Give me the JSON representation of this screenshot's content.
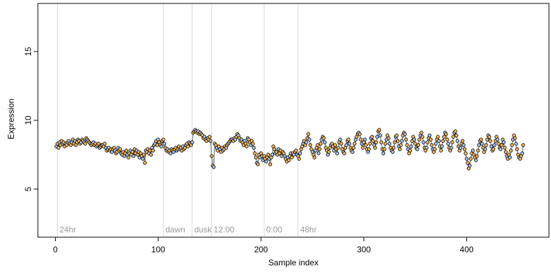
{
  "chart_data": {
    "type": "scatter",
    "title": "",
    "xlabel": "Sample index",
    "ylabel": "Expression",
    "xlim": [
      -17,
      480
    ],
    "ylim": [
      1.5,
      18.5
    ],
    "x_ticks": [
      0,
      100,
      200,
      300,
      400
    ],
    "y_ticks": [
      5,
      10,
      15
    ],
    "grid": false,
    "colors": {
      "point_fill_a": "#f4b860",
      "point_fill_b": "#a8c4ec",
      "segment_a": "#f0a830",
      "segment_b": "#7aa0e0",
      "trend_line": "#999999",
      "marker_line": "#d9d9d9",
      "marker_text": "#999999",
      "point_stroke": "#000000"
    },
    "markers": [
      {
        "x": 2,
        "label": "24hr"
      },
      {
        "x": 105,
        "label": "dawn"
      },
      {
        "x": 133,
        "label": "dusk"
      },
      {
        "x": 152,
        "label": "12:00"
      },
      {
        "x": 203,
        "label": "0:00"
      },
      {
        "x": 236,
        "label": "48hr"
      }
    ],
    "series": [
      {
        "start_x": 1,
        "values": [
          8.1,
          8.3,
          8.0,
          8.4,
          8.2,
          8.5,
          8.3,
          8.4,
          8.1,
          8.3,
          8.2,
          8.4,
          8.5,
          8.3,
          8.2,
          8.4,
          8.6,
          8.3,
          8.5,
          8.2,
          8.4,
          8.6,
          8.5,
          8.3,
          8.4,
          8.6,
          8.5,
          8.4,
          8.3,
          8.7,
          8.6,
          8.5,
          8.4,
          8.3,
          8.2,
          8.3,
          8.4,
          8.2,
          8.3,
          8.1,
          8.2,
          8.3,
          8.0,
          8.1,
          8.2,
          8.2,
          8.1,
          8.3,
          8.0,
          7.8,
          7.9,
          8.0,
          7.8,
          7.9,
          7.7,
          7.9,
          8.0,
          7.8,
          7.6,
          7.7,
          8.0,
          7.8,
          7.9,
          7.6,
          7.5,
          7.7,
          7.4,
          7.6,
          7.8,
          7.5,
          7.3,
          7.6,
          7.8,
          7.5,
          7.7,
          7.4,
          7.9,
          7.6,
          7.8,
          7.5,
          7.7,
          7.3,
          7.6,
          7.4,
          7.2,
          7.5,
          6.9,
          7.8,
          7.7,
          7.9,
          7.6,
          7.8,
          7.5,
          8.0,
          7.8,
          8.2,
          8.3,
          8.5,
          8.2,
          8.6,
          8.4,
          8.2,
          8.1,
          8.5,
          8.6,
          8.3,
          8.0,
          7.8,
          7.9,
          7.7,
          7.8,
          7.6,
          7.9,
          7.8,
          7.7,
          7.9,
          8.0,
          7.8,
          7.9,
          8.1,
          7.9,
          8.0,
          7.8,
          8.1,
          7.9,
          8.0,
          8.2,
          8.3,
          8.1,
          8.4,
          8.3,
          8.2,
          8.4,
          9.1,
          9.2,
          9.3,
          9.2,
          9.1,
          9.2,
          9.0,
          9.1,
          9.0,
          8.9,
          8.7,
          8.8,
          8.6,
          8.5,
          8.7,
          8.6,
          8.8,
          8.5,
          7.4,
          6.7,
          6.6,
          8.3,
          8.2,
          8.0,
          7.8,
          8.1,
          7.9,
          7.7,
          8.0,
          7.8,
          7.9,
          8.1,
          8.0,
          8.2,
          8.3,
          8.4,
          8.5,
          8.6,
          8.6,
          8.5,
          8.7,
          8.6,
          8.8,
          9.0,
          8.9,
          8.7,
          8.5,
          8.6,
          8.4,
          8.2,
          8.5,
          8.3,
          8.1,
          8.7,
          8.6,
          8.4,
          8.2,
          8.5,
          8.3,
          8.0,
          7.6,
          7.3,
          6.9,
          6.8,
          7.5,
          7.3,
          7.6,
          7.4,
          7.1,
          7.4,
          7.2,
          7.0,
          7.3,
          7.5,
          7.2,
          6.8,
          7.3,
          7.5,
          8.1,
          7.9,
          7.6,
          7.7,
          7.5,
          7.9,
          7.6,
          7.8,
          7.4,
          7.7,
          7.6,
          7.4,
          7.2,
          7.0,
          7.3,
          7.1,
          7.4,
          7.6,
          7.3,
          7.6,
          7.5,
          7.7,
          7.8,
          7.5,
          7.4,
          7.2,
          7.6,
          7.9,
          8.1,
          8.3,
          8.5,
          8.2,
          8.4,
          8.7,
          9.0,
          8.6,
          8.2,
          7.9,
          7.7,
          7.5,
          7.3,
          7.8,
          8.0,
          8.2,
          7.6,
          7.9,
          8.3,
          8.6,
          8.8,
          8.7,
          8.4,
          8.0,
          7.8,
          7.5,
          7.7,
          8.0,
          8.2,
          8.3,
          8.1,
          7.8,
          8.2,
          7.9,
          7.6,
          8.0,
          8.4,
          8.6,
          8.3,
          7.9,
          7.7,
          7.6,
          8.0,
          8.2,
          8.5,
          8.6,
          8.3,
          8.0,
          7.8,
          7.7,
          8.0,
          8.3,
          8.6,
          8.8,
          9.0,
          9.1,
          9.0,
          8.6,
          8.3,
          8.0,
          8.4,
          8.6,
          8.2,
          7.9,
          7.7,
          7.9,
          8.3,
          8.7,
          8.8,
          8.5,
          8.2,
          8.0,
          8.4,
          8.8,
          9.2,
          9.3,
          8.9,
          8.4,
          7.9,
          7.6,
          7.9,
          8.3,
          8.6,
          8.9,
          8.7,
          8.3,
          8.0,
          7.8,
          7.7,
          8.0,
          8.4,
          8.8,
          8.9,
          8.5,
          8.1,
          7.9,
          8.2,
          8.5,
          8.9,
          9.1,
          9.0,
          8.6,
          8.2,
          7.9,
          7.6,
          7.8,
          8.1,
          8.5,
          8.8,
          8.6,
          8.3,
          8.0,
          7.9,
          8.2,
          8.6,
          8.9,
          9.1,
          8.8,
          8.4,
          8.0,
          7.8,
          8.0,
          8.4,
          8.7,
          8.9,
          8.6,
          8.2,
          7.9,
          7.7,
          7.9,
          8.3,
          8.6,
          8.8,
          8.5,
          8.1,
          7.8,
          8.1,
          8.5,
          8.8,
          9.1,
          9.0,
          8.6,
          8.3,
          8.0,
          7.8,
          8.0,
          8.4,
          8.8,
          9.1,
          9.2,
          8.9,
          8.5,
          8.1,
          7.8,
          8.0,
          8.3,
          8.5,
          8.2,
          7.9,
          7.6,
          7.2,
          6.9,
          6.5,
          6.7,
          7.2,
          7.6,
          7.8,
          7.5,
          7.3,
          7.1,
          7.4,
          7.8,
          8.2,
          8.5,
          8.6,
          8.3,
          8.0,
          7.7,
          7.9,
          8.2,
          8.6,
          8.9,
          8.8,
          8.5,
          8.1,
          7.8,
          7.9,
          8.2,
          8.5,
          8.8,
          8.6,
          8.3,
          8.0,
          7.9,
          8.2,
          8.6,
          8.4,
          8.0,
          7.7,
          7.4,
          7.2,
          7.5,
          7.3,
          7.8,
          8.2,
          8.6,
          8.9,
          8.7,
          8.3,
          7.9,
          7.5,
          7.3,
          7.2,
          7.4,
          7.6,
          8.2
        ]
      }
    ]
  }
}
